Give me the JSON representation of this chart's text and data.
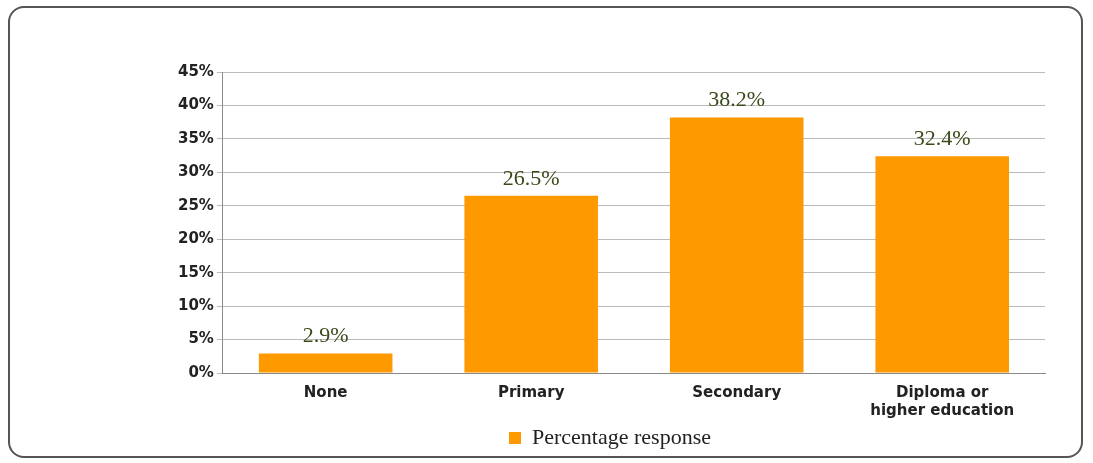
{
  "chart_data": {
    "type": "bar",
    "categories": [
      "None",
      "Primary",
      "Secondary",
      "Diploma or higher education"
    ],
    "series": [
      {
        "name": "Percentage response",
        "color": "#ff9900",
        "values": [
          2.9,
          26.5,
          38.2,
          32.4
        ]
      }
    ],
    "ylim": [
      0,
      45
    ],
    "yticks": [
      {
        "value": 0,
        "label": "0%"
      },
      {
        "value": 5,
        "label": "5%"
      },
      {
        "value": 10,
        "label": "10%"
      },
      {
        "value": 15,
        "label": "15%"
      },
      {
        "value": 20,
        "label": "20%"
      },
      {
        "value": 25,
        "label": "25%"
      },
      {
        "value": 30,
        "label": "30%"
      },
      {
        "value": 35,
        "label": "35%"
      },
      {
        "value": 40,
        "label": "40%"
      },
      {
        "value": 45,
        "label": "45%"
      }
    ],
    "value_labels": [
      "2.9%",
      "26.5%",
      "38.2%",
      "32.4%"
    ],
    "grid": "y",
    "legend": "bottom"
  }
}
